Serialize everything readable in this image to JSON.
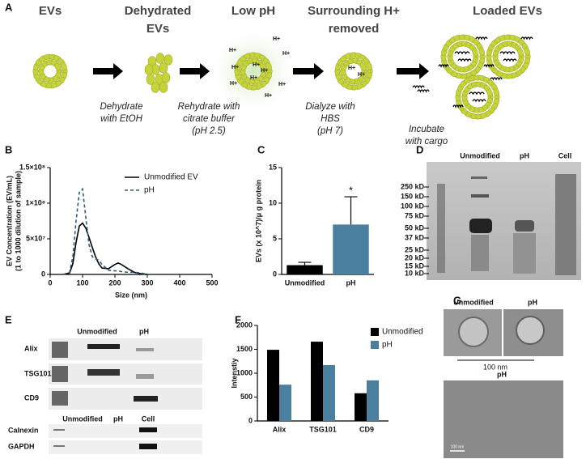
{
  "panel_a": {
    "label": "A",
    "steps": [
      [
        "EVs"
      ],
      [
        "Dehydrated",
        "EVs"
      ],
      [
        "Low pH"
      ],
      [
        "Surrounding H+",
        "removed"
      ],
      [
        "Loaded EVs"
      ]
    ],
    "actions": [
      [
        "Dehydrate",
        "with EtOH"
      ],
      [
        "Rehydrate with",
        "citrate buffer",
        "(pH 2.5)"
      ],
      [
        "Dialyze with",
        "HBS",
        "(pH 7)"
      ],
      [
        "Incubate",
        "with cargo"
      ]
    ],
    "ion": "H+"
  },
  "chart_data": [
    {
      "type": "line",
      "panel": "B",
      "xlabel": "Size (nm)",
      "ylabel": [
        "EV Concentration (EV/mL)",
        "(1 to 1000 dilution of sample)"
      ],
      "x": [
        40,
        60,
        70,
        80,
        90,
        100,
        110,
        120,
        130,
        140,
        150,
        160,
        180,
        200,
        210,
        220,
        240,
        260,
        280,
        300
      ],
      "series": [
        {
          "name": "Unmodified EV",
          "color": "#000000",
          "line_style": "solid",
          "values": [
            0,
            2000000,
            15000000,
            45000000,
            68000000,
            72000000,
            65000000,
            52000000,
            38000000,
            25000000,
            15000000,
            9000000,
            8000000,
            14000000,
            16000000,
            14000000,
            8000000,
            3000000,
            1000000,
            0
          ]
        },
        {
          "name": "pH",
          "color": "#2d5b7a",
          "line_style": "dashed",
          "values": [
            0,
            3000000,
            25000000,
            75000000,
            115000000,
            120000000,
            80000000,
            42000000,
            25000000,
            22000000,
            20000000,
            14000000,
            6000000,
            5000000,
            5000000,
            4000000,
            3000000,
            3000000,
            2000000,
            0
          ]
        }
      ],
      "xlim": [
        0,
        500
      ],
      "xticks": [
        0,
        100,
        200,
        300,
        400,
        500
      ],
      "ylim": [
        0,
        150000000
      ],
      "yticks": [
        0,
        {
          "value": 50000000,
          "label": "5×10⁷"
        },
        {
          "value": 100000000,
          "label": "1×10⁸"
        },
        {
          "value": 150000000,
          "label": "1.5×10⁸"
        }
      ],
      "legend": "upper right"
    },
    {
      "type": "bar",
      "panel": "C",
      "ylabel": "EVs (x 10^7)/μ g protein",
      "categories": [
        "Unmodified",
        "pH"
      ],
      "values": [
        1.3,
        7.0
      ],
      "errors": [
        0.4,
        3.9
      ],
      "colors": [
        "#000000",
        "#4a7f9f"
      ],
      "annotation": "*",
      "ylim": [
        0,
        15
      ],
      "yticks": [
        0,
        5,
        10,
        15
      ]
    },
    {
      "type": "grouped_bar",
      "panel": "F",
      "ylabel": "Intenstiy",
      "categories": [
        "Alix",
        "TSG101",
        "CD9"
      ],
      "series": [
        {
          "name": "Unmodified",
          "color": "#000000",
          "values": [
            1490,
            1660,
            580
          ]
        },
        {
          "name": "pH",
          "color": "#4a7f9f",
          "values": [
            760,
            1170,
            850
          ]
        }
      ],
      "ylim": [
        0,
        2000
      ],
      "yticks": [
        0,
        500,
        1000,
        1500,
        2000
      ],
      "legend": "upper right"
    }
  ],
  "panel_d": {
    "label": "D",
    "lanes": [
      "Unmodified",
      "pH",
      "Cell"
    ],
    "markers": [
      "250 kD",
      "150 kD",
      "100 kD",
      "75 kD",
      "50 kD",
      "37 kD",
      "25 kD",
      "20 kD",
      "15 kD",
      "10 kD"
    ]
  },
  "panel_e": {
    "label": "E",
    "lanes_top": [
      "Unmodified",
      "pH"
    ],
    "rows_top": [
      "Alix",
      "TSG101",
      "CD9"
    ],
    "lanes_bottom": [
      "Unmodified",
      "pH",
      "Cell"
    ],
    "rows_bottom": [
      "Calnexin",
      "GAPDH"
    ]
  },
  "panel_g": {
    "label": "G",
    "top_labels": [
      "Unmodified",
      "pH"
    ],
    "scale": "100 nm",
    "bottom_label": "pH",
    "bottom_scale": "100 nm"
  }
}
